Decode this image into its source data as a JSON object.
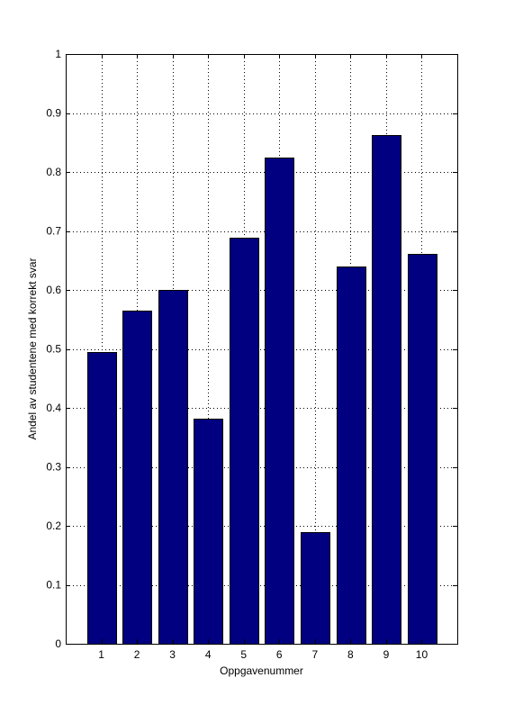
{
  "chart_data": {
    "type": "bar",
    "categories": [
      "1",
      "2",
      "3",
      "4",
      "5",
      "6",
      "7",
      "8",
      "9",
      "10"
    ],
    "values": [
      0.495,
      0.565,
      0.6,
      0.381,
      0.689,
      0.825,
      0.189,
      0.64,
      0.863,
      0.661
    ],
    "xlabel": "Oppgavenummer",
    "ylabel": "Andel av studentene med korrekt svar",
    "ylim": [
      0,
      1
    ],
    "yticks": [
      "0",
      "0.1",
      "0.2",
      "0.3",
      "0.4",
      "0.5",
      "0.6",
      "0.7",
      "0.8",
      "0.9",
      "1"
    ],
    "grid": true,
    "bar_color": "#000080",
    "edge_color": "#000000"
  }
}
